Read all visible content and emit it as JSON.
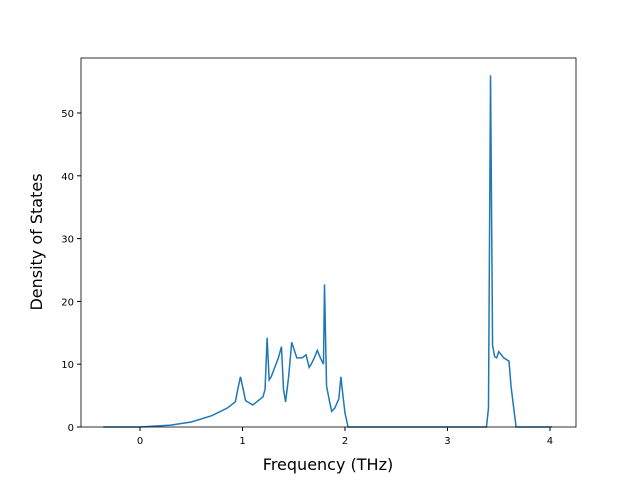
{
  "chart_data": {
    "type": "line",
    "xlabel": "Frequency (THz)",
    "ylabel": "Density of States",
    "x": [
      -0.36,
      0,
      0.3,
      0.5,
      0.7,
      0.85,
      0.93,
      0.96,
      0.98,
      1.0,
      1.03,
      1.1,
      1.2,
      1.22,
      1.24,
      1.26,
      1.28,
      1.35,
      1.38,
      1.4,
      1.42,
      1.45,
      1.48,
      1.5,
      1.53,
      1.58,
      1.62,
      1.65,
      1.67,
      1.7,
      1.73,
      1.76,
      1.79,
      1.8,
      1.82,
      1.85,
      1.87,
      1.9,
      1.94,
      1.96,
      1.98,
      2.0,
      2.03,
      3.38,
      3.4,
      3.42,
      3.44,
      3.46,
      3.48,
      3.5,
      3.55,
      3.6,
      3.62,
      3.65,
      3.67,
      4.02
    ],
    "series": [
      {
        "color": "#1f77b4",
        "values": [
          0,
          0,
          0.3,
          0.8,
          1.8,
          3,
          4,
          6.5,
          8,
          6.5,
          4.2,
          3.5,
          4.8,
          6,
          14.2,
          7.5,
          8,
          11,
          12.8,
          6,
          4,
          8,
          13.5,
          12.5,
          11,
          11,
          11.5,
          9.5,
          10,
          11,
          12.2,
          11,
          10,
          22.7,
          6.5,
          4,
          2.5,
          3,
          4.5,
          8,
          5,
          2.2,
          0,
          0,
          3,
          56,
          13,
          11.2,
          11,
          12,
          11,
          10.5,
          6.5,
          2.5,
          0,
          0
        ]
      }
    ],
    "xlim": [
      -0.576,
      4.254
    ],
    "ylim": [
      0,
      58.76
    ],
    "xticks": [
      0,
      1,
      2,
      3,
      4
    ],
    "yticks": [
      0,
      10,
      20,
      30,
      40,
      50
    ]
  }
}
